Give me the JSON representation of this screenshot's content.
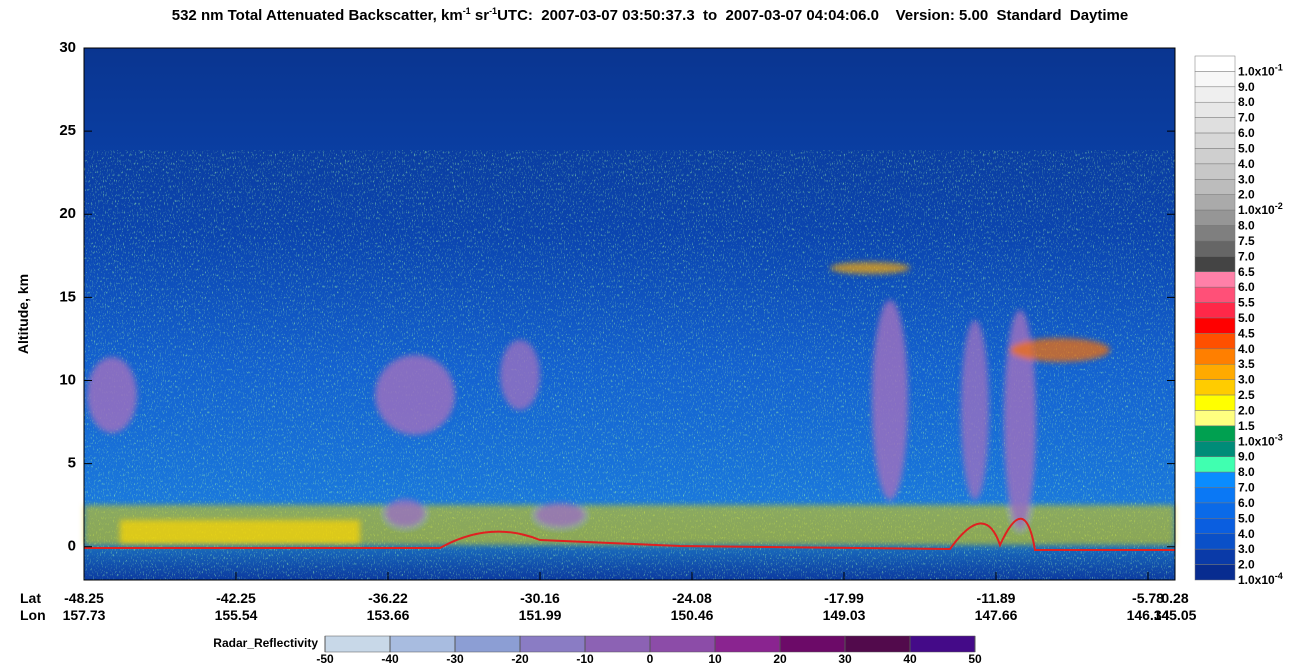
{
  "chart_data": {
    "type": "curtain",
    "title": {
      "main": "532 nm Total Attenuated Backscatter, km",
      "exp1": "-1",
      "unit2": " sr",
      "exp2": "-1"
    },
    "subtitle": "UTC:  2007-03-07 03:50:37.3  to  2007-03-07 04:04:06.0    Version: 5.00  Standard  Daytime",
    "y_label": "Altitude, km",
    "ylim": [
      -2,
      30
    ],
    "yticks": [
      0,
      5,
      10,
      15,
      20,
      25,
      30
    ],
    "x_axis": {
      "lat_label": "Lat",
      "lon_label": "Lon",
      "lat": [
        -48.25,
        -42.25,
        -36.22,
        -30.16,
        -24.08,
        -17.99,
        -11.89,
        -5.78,
        0.28
      ],
      "lon": [
        157.73,
        155.54,
        153.66,
        151.99,
        150.46,
        149.03,
        147.66,
        146.34,
        145.05
      ]
    },
    "colorbar": [
      {
        "label": "1.0x10",
        "exp": "-1",
        "color": "#ffffff"
      },
      {
        "label": "9.0",
        "color": "#f7f7f7"
      },
      {
        "label": "8.0",
        "color": "#efefef"
      },
      {
        "label": "7.0",
        "color": "#e7e7e7"
      },
      {
        "label": "6.0",
        "color": "#dfdfdf"
      },
      {
        "label": "5.0",
        "color": "#d7d7d7"
      },
      {
        "label": "4.0",
        "color": "#cfcfcf"
      },
      {
        "label": "3.0",
        "color": "#c7c7c7"
      },
      {
        "label": "2.0",
        "color": "#bcbcbc"
      },
      {
        "label": "1.0x10",
        "exp": "-2",
        "color": "#aaaaaa"
      },
      {
        "label": "8.0",
        "color": "#969696"
      },
      {
        "label": "7.5",
        "color": "#7f7f7f"
      },
      {
        "label": "7.0",
        "color": "#666666"
      },
      {
        "label": "6.5",
        "color": "#444444"
      },
      {
        "label": "6.0",
        "color": "#ff80a8"
      },
      {
        "label": "5.5",
        "color": "#ff5078"
      },
      {
        "label": "5.0",
        "color": "#ff2848"
      },
      {
        "label": "4.5",
        "color": "#ff0000"
      },
      {
        "label": "4.0",
        "color": "#ff5000"
      },
      {
        "label": "3.5",
        "color": "#ff7f00"
      },
      {
        "label": "3.0",
        "color": "#ffaa00"
      },
      {
        "label": "2.5",
        "color": "#ffcc00"
      },
      {
        "label": "2.0",
        "color": "#ffff00"
      },
      {
        "label": "1.5",
        "color": "#ffff80"
      },
      {
        "label": "1.0x10",
        "exp": "-3",
        "color": "#00a050"
      },
      {
        "label": "9.0",
        "color": "#008c78"
      },
      {
        "label": "8.0",
        "color": "#40ffb0"
      },
      {
        "label": "7.0",
        "color": "#0a8cff"
      },
      {
        "label": "6.0",
        "color": "#0a78f5"
      },
      {
        "label": "5.0",
        "color": "#0a6ae8"
      },
      {
        "label": "4.0",
        "color": "#0a5ee0"
      },
      {
        "label": "3.0",
        "color": "#0a50c8"
      },
      {
        "label": "2.0",
        "color": "#0a3aa8"
      },
      {
        "label": "1.0x10",
        "exp": "-4",
        "color": "#082c90"
      }
    ],
    "radar_colorbar": {
      "label": "Radar_Reflectivity",
      "lim": [
        -50,
        50
      ],
      "ticks": [
        -50,
        -40,
        -30,
        -20,
        -10,
        0,
        10,
        20,
        30,
        40,
        50
      ],
      "colors": [
        "#c8d8e8",
        "#a8bce0",
        "#8c9ed4",
        "#8a7cc4",
        "#8c62b4",
        "#8c4ca8",
        "#8a2490",
        "#6c0a68",
        "#520a4c",
        "#440a88"
      ]
    }
  }
}
